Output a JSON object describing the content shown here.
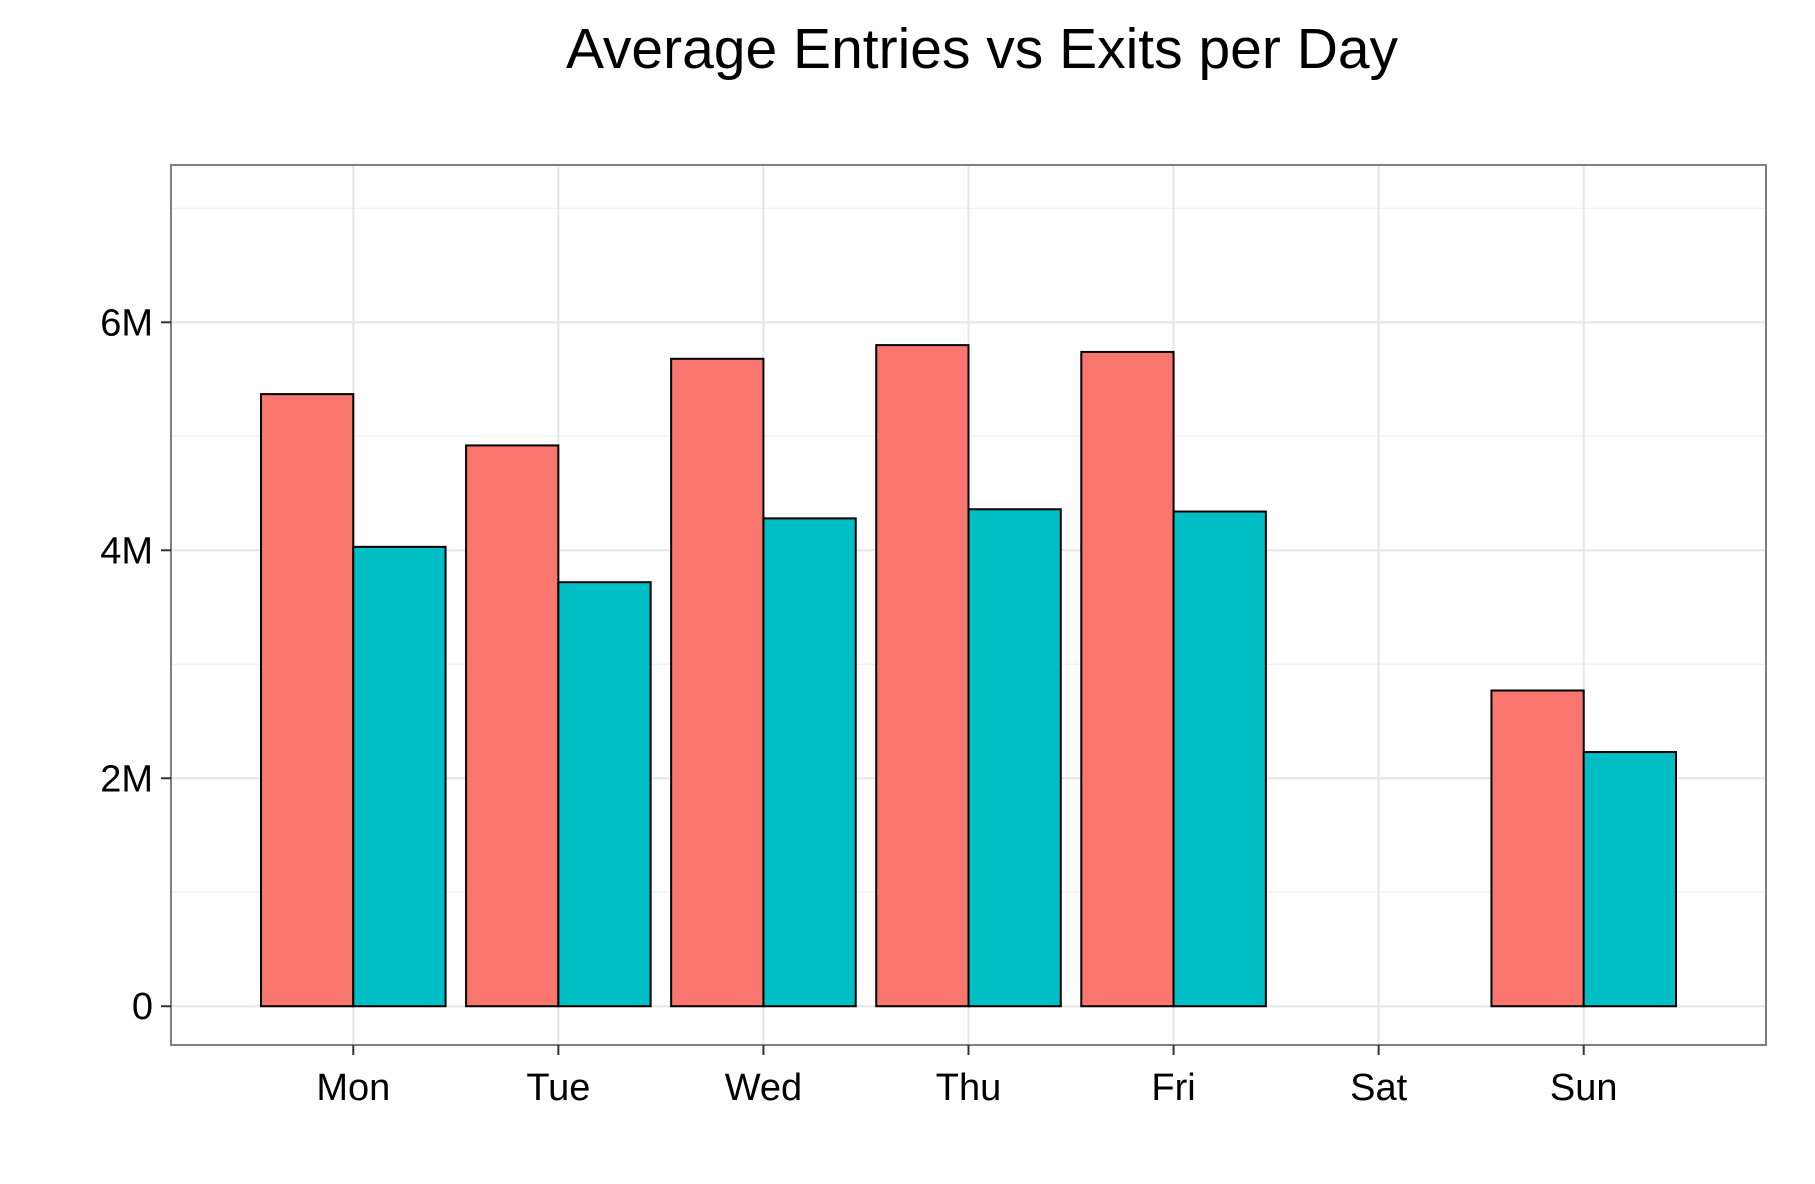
{
  "chart_data": {
    "type": "bar",
    "title": "Average Entries vs Exits per Day",
    "xlabel": "",
    "ylabel": "",
    "categories": [
      "Mon",
      "Tue",
      "Wed",
      "Thu",
      "Fri",
      "Sat",
      "Sun"
    ],
    "series": [
      {
        "values": [
          5370000,
          4920000,
          5680000,
          5800000,
          5740000,
          null,
          2770000
        ],
        "color": "#F8766D"
      },
      {
        "values": [
          4030000,
          3720000,
          4280000,
          4360000,
          4340000,
          null,
          2230000
        ],
        "color": "#00BFC4"
      }
    ],
    "ylim": [
      -340000,
      7380000
    ],
    "yticks": [
      0,
      2000000,
      4000000,
      6000000
    ],
    "ytick_labels": [
      "0",
      "2M",
      "4M",
      "6M"
    ],
    "grid": true,
    "legend": "none",
    "bar_outline_color": "#000000"
  }
}
